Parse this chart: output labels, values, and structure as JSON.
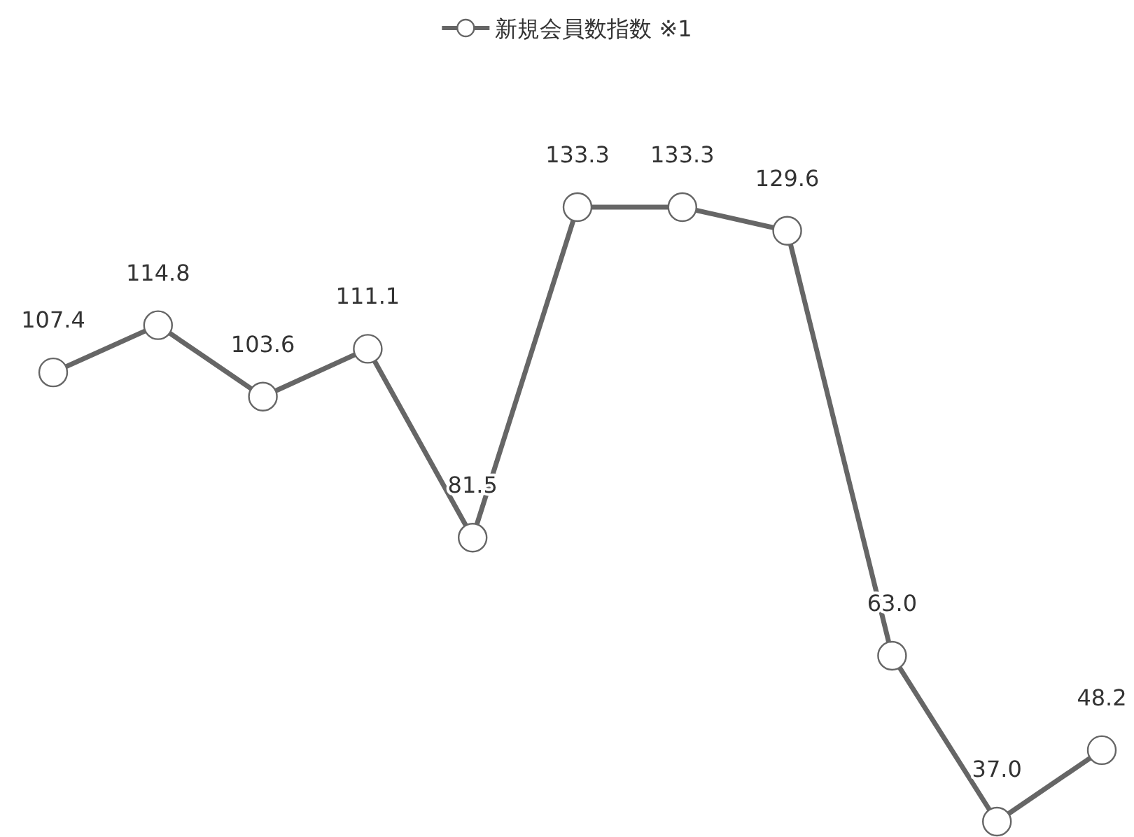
{
  "chart_data": {
    "type": "line",
    "categories": [
      null,
      null,
      null,
      null,
      null,
      null,
      null,
      null,
      null,
      null,
      null
    ],
    "series": [
      {
        "name": "新規会員数指数 ※1",
        "color": "#666666",
        "values": [
          107.4,
          114.8,
          103.6,
          111.1,
          81.5,
          133.3,
          133.3,
          129.6,
          63.0,
          37.0,
          48.2
        ],
        "value_labels": [
          "107.4",
          "114.8",
          "103.6",
          "111.1",
          "81.5",
          "133.3",
          "133.3",
          "129.6",
          "63.0",
          "37.0",
          "48.2"
        ]
      }
    ],
    "legend": "top",
    "marker": "circle",
    "line_style": "solid",
    "grid": false
  }
}
